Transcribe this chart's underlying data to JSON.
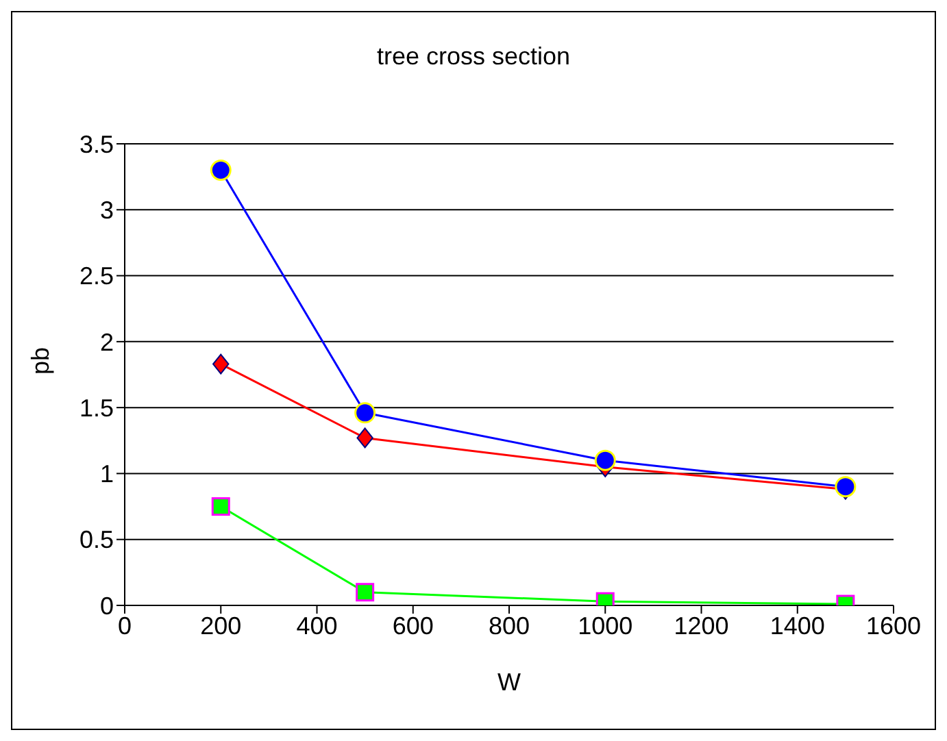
{
  "chart_data": {
    "type": "line",
    "title": "tree cross section",
    "xlabel": "W",
    "ylabel": "pb",
    "x": [
      200,
      500,
      1000,
      1500
    ],
    "series": [
      {
        "color": "#0000ff",
        "marker": "circle",
        "values": [
          3.3,
          1.46,
          1.1,
          0.9
        ]
      },
      {
        "color": "#ff0000",
        "marker": "diamond",
        "values": [
          1.83,
          1.27,
          1.05,
          0.88
        ]
      },
      {
        "color": "#00ff00",
        "marker": "square",
        "values": [
          0.75,
          0.1,
          0.03,
          0.01
        ]
      }
    ],
    "xlim": [
      0,
      1600
    ],
    "xticks": [
      0,
      200,
      400,
      600,
      800,
      1000,
      1200,
      1400,
      1600
    ],
    "ylim": [
      0,
      3.5
    ],
    "yticks": [
      0,
      0.5,
      1,
      1.5,
      2,
      2.5,
      3,
      3.5
    ],
    "grid": "y"
  }
}
